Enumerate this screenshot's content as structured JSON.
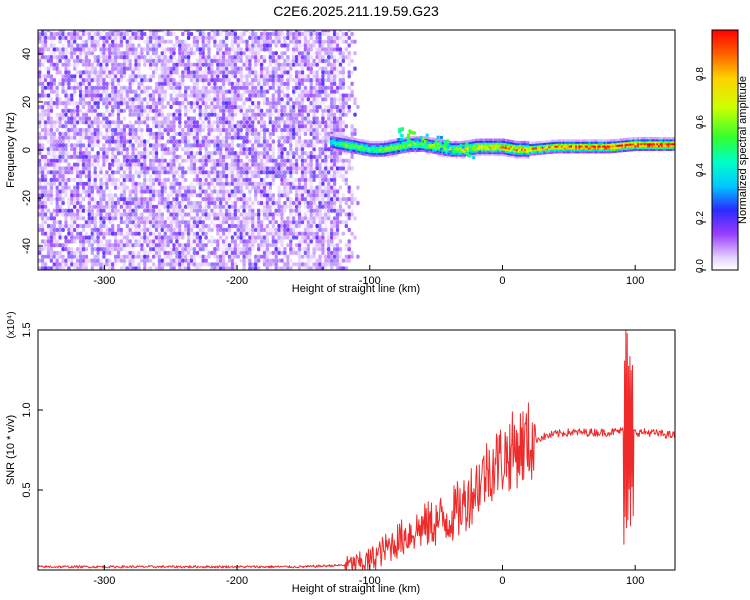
{
  "title": "C2E6.2025.211.19.59.G23",
  "colors": {
    "background": "#ffffff",
    "axis": "#000000",
    "snr_line": "#ee2a2a",
    "noise_purple": "#7b2cf0",
    "signal_red": "#ff0000"
  },
  "chart_data": [
    {
      "type": "heatmap",
      "xlabel": "Height of straight line (km)",
      "ylabel": "Frequency (Hz)",
      "xlim": [
        -350,
        130
      ],
      "ylim": [
        -50,
        50
      ],
      "xticks": [
        -300,
        -200,
        -100,
        0,
        100
      ],
      "yticks": [
        -40,
        -20,
        0,
        20,
        40
      ],
      "grid": false,
      "colorbar": {
        "label": "Normalized spectral amplitude",
        "range": [
          0,
          1
        ],
        "ticks": [
          0.0,
          0.2,
          0.4,
          0.6,
          0.8
        ],
        "colormap": "rainbow (white-violet-blue-cyan-green-yellow-red)"
      },
      "noise_region": {
        "x_range": [
          -350,
          -110
        ],
        "freq_range": [
          -50,
          50
        ],
        "amplitude": 0.15
      },
      "signal_trace": {
        "x": [
          -130,
          -120,
          -110,
          -100,
          -90,
          -80,
          -70,
          -60,
          -50,
          -40,
          -30,
          -20,
          -10,
          0,
          10,
          20,
          40,
          60,
          80,
          100,
          130
        ],
        "freq": [
          3,
          2,
          1,
          0,
          0,
          1,
          2,
          2,
          1,
          0,
          0,
          1,
          1,
          1,
          0,
          0,
          1,
          1,
          1,
          2,
          2
        ],
        "amplitude": [
          0.45,
          0.6,
          0.6,
          0.55,
          0.6,
          0.65,
          0.6,
          0.6,
          0.65,
          0.7,
          0.75,
          0.75,
          0.8,
          0.85,
          0.85,
          0.85,
          0.9,
          0.95,
          1.0,
          1.0,
          1.0
        ]
      }
    },
    {
      "type": "line",
      "xlabel": "Height of straight line (km)",
      "ylabel": "SNR (10 * v/v)",
      "multiplier_label": "(x10⁴)",
      "xlim": [
        -350,
        130
      ],
      "ylim": [
        0,
        1.5
      ],
      "xticks": [
        -300,
        -200,
        -100,
        0,
        100
      ],
      "yticks": [
        0.5,
        1.0,
        1.5
      ],
      "grid": false,
      "series": [
        {
          "x": [
            -350,
            -300,
            -250,
            -200,
            -150,
            -120,
            -110,
            -100,
            -90,
            -80,
            -70,
            -60,
            -50,
            -40,
            -30,
            -20,
            -10,
            0,
            10,
            20,
            30,
            40,
            50,
            60,
            70,
            80,
            90,
            95,
            100,
            110,
            120,
            130
          ],
          "values": [
            0.02,
            0.02,
            0.02,
            0.02,
            0.02,
            0.03,
            0.04,
            0.06,
            0.12,
            0.18,
            0.23,
            0.27,
            0.3,
            0.33,
            0.4,
            0.52,
            0.64,
            0.7,
            0.76,
            0.8,
            0.83,
            0.85,
            0.86,
            0.86,
            0.86,
            0.86,
            0.87,
            0.86,
            0.86,
            0.86,
            0.85,
            0.84
          ]
        }
      ],
      "spike": {
        "x": 95,
        "max": 1.52,
        "min": 0.15
      }
    }
  ]
}
